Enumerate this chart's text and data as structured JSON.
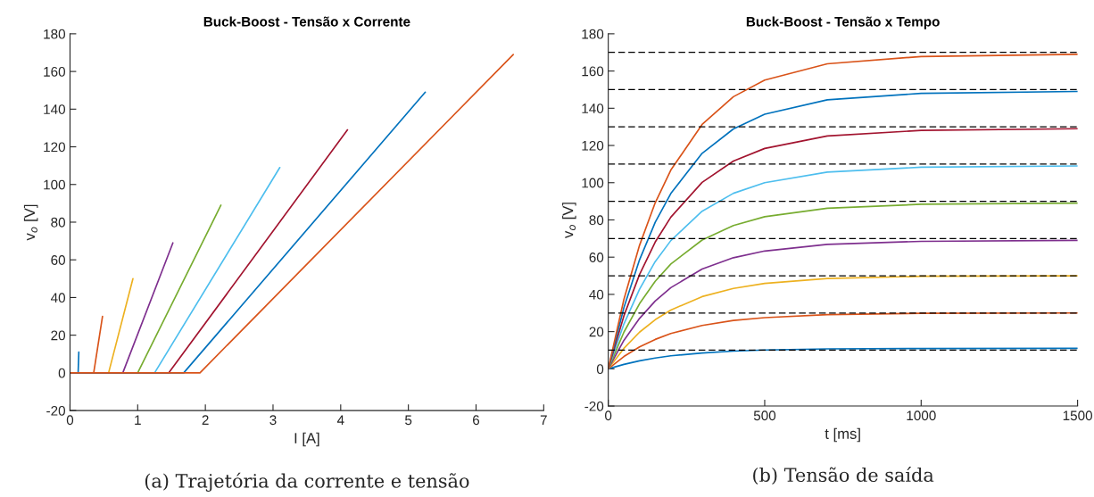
{
  "chart_data": [
    {
      "type": "line",
      "title": "Buck-Boost - Tensão x Corrente",
      "xlabel": "I [A]",
      "ylabel": "v$_{o}$ [V]",
      "xlim": [
        0,
        7
      ],
      "xticks": [
        0,
        1,
        2,
        3,
        4,
        5,
        6,
        7
      ],
      "ylim": [
        -20,
        180
      ],
      "yticks": [
        -20,
        0,
        20,
        40,
        60,
        80,
        100,
        120,
        140,
        160,
        180
      ],
      "grid": false,
      "series": [
        {
          "color": "#0072bd",
          "x": [
            0,
            0.12,
            0.13
          ],
          "values": [
            0,
            0,
            11
          ]
        },
        {
          "color": "#d95319",
          "x": [
            0,
            0.35,
            0.48
          ],
          "values": [
            0,
            0,
            30
          ]
        },
        {
          "color": "#edb120",
          "x": [
            0,
            0.57,
            0.93
          ],
          "values": [
            0,
            0,
            50
          ]
        },
        {
          "color": "#7e2f8e",
          "x": [
            0,
            0.78,
            1.52
          ],
          "values": [
            0,
            0,
            69
          ]
        },
        {
          "color": "#77ac30",
          "x": [
            0,
            1.0,
            2.23
          ],
          "values": [
            0,
            0,
            89
          ]
        },
        {
          "color": "#4dbeee",
          "x": [
            0,
            1.25,
            3.1
          ],
          "values": [
            0,
            0,
            109
          ]
        },
        {
          "color": "#a2142f",
          "x": [
            0,
            1.46,
            4.1
          ],
          "values": [
            0,
            0,
            129
          ]
        },
        {
          "color": "#0072bd",
          "x": [
            0,
            1.68,
            5.25
          ],
          "values": [
            0,
            0,
            149
          ]
        },
        {
          "color": "#d95319",
          "x": [
            0,
            1.92,
            6.55
          ],
          "values": [
            0,
            0,
            169
          ]
        }
      ],
      "annotations": [
        "(a) Trajetória da corrente e tensão"
      ]
    },
    {
      "type": "line",
      "title": "Buck-Boost - Tensão x Tempo",
      "xlabel": "t [ms]",
      "ylabel": "v$_{o}$ [V]",
      "xlim": [
        0,
        1500
      ],
      "xticks": [
        0,
        500,
        1000,
        1500
      ],
      "ylim": [
        -20,
        180
      ],
      "yticks": [
        -20,
        0,
        20,
        40,
        60,
        80,
        100,
        120,
        140,
        160,
        180
      ],
      "grid": false,
      "x": [
        0,
        50,
        100,
        150,
        200,
        300,
        400,
        500,
        700,
        1000,
        1500
      ],
      "series": [
        {
          "color": "#0072bd",
          "values": [
            0,
            2.4,
            4.3,
            5.8,
            7,
            8.5,
            9.5,
            10.1,
            10.7,
            10.9,
            11
          ]
        },
        {
          "color": "#d95319",
          "values": [
            0,
            6.6,
            11.8,
            15.8,
            19,
            23.3,
            26,
            27.5,
            29.1,
            29.8,
            30
          ]
        },
        {
          "color": "#edb120",
          "values": [
            0,
            11,
            19.7,
            26.4,
            31.6,
            38.8,
            43.2,
            45.9,
            48.5,
            49.7,
            50
          ]
        },
        {
          "color": "#7e2f8e",
          "values": [
            0,
            15.3,
            27.1,
            36.4,
            43.6,
            53.6,
            59.7,
            63.3,
            66.9,
            68.5,
            69
          ]
        },
        {
          "color": "#77ac30",
          "values": [
            0,
            19.7,
            35,
            47,
            56.3,
            69.2,
            77,
            81.7,
            86.3,
            88.4,
            89
          ]
        },
        {
          "color": "#4dbeee",
          "values": [
            0,
            24.1,
            42.8,
            57.6,
            68.9,
            84.7,
            94.3,
            100,
            105.7,
            108.3,
            109
          ]
        },
        {
          "color": "#a2142f",
          "values": [
            0,
            28.5,
            50.7,
            68.1,
            81.5,
            100.2,
            111.6,
            118.4,
            125.1,
            128.1,
            129
          ]
        },
        {
          "color": "#0072bd",
          "values": [
            0,
            32.9,
            58.6,
            78.7,
            94.2,
            115.8,
            128.9,
            136.8,
            144.5,
            148,
            149
          ]
        },
        {
          "color": "#d95319",
          "values": [
            0,
            37.3,
            66.4,
            89.2,
            106.8,
            131.3,
            146.2,
            155.1,
            163.9,
            167.8,
            169
          ]
        }
      ],
      "ref_lines": [
        {
          "axis": "y",
          "value": 10,
          "color": "#000000",
          "line_style": "dashed"
        },
        {
          "axis": "y",
          "value": 30,
          "color": "#000000",
          "line_style": "dashed"
        },
        {
          "axis": "y",
          "value": 50,
          "color": "#000000",
          "line_style": "dashed"
        },
        {
          "axis": "y",
          "value": 70,
          "color": "#000000",
          "line_style": "dashed"
        },
        {
          "axis": "y",
          "value": 90,
          "color": "#000000",
          "line_style": "dashed"
        },
        {
          "axis": "y",
          "value": 110,
          "color": "#000000",
          "line_style": "dashed"
        },
        {
          "axis": "y",
          "value": 130,
          "color": "#000000",
          "line_style": "dashed"
        },
        {
          "axis": "y",
          "value": 150,
          "color": "#000000",
          "line_style": "dashed"
        },
        {
          "axis": "y",
          "value": 170,
          "color": "#000000",
          "line_style": "dashed"
        }
      ],
      "annotations": [
        "(b) Tensão de saída"
      ]
    }
  ]
}
